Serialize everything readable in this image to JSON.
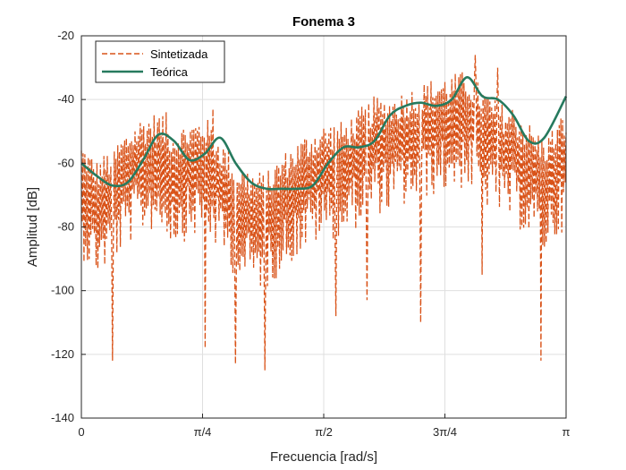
{
  "chart_data": {
    "type": "line",
    "title": "Fonema 3",
    "xlabel": "Frecuencia [rad/s]",
    "ylabel": "Amplitud [dB]",
    "xlim": [
      0,
      3.14159
    ],
    "ylim": [
      -140,
      -20
    ],
    "grid": true,
    "legend_position": "top-left",
    "xticks": [
      {
        "value": 0,
        "label": "0"
      },
      {
        "value": 0.7854,
        "label": "π/4"
      },
      {
        "value": 1.5708,
        "label": "π/2"
      },
      {
        "value": 2.3562,
        "label": "3π/4"
      },
      {
        "value": 3.14159,
        "label": "π"
      }
    ],
    "yticks": [
      -140,
      -120,
      -100,
      -80,
      -60,
      -40,
      -20
    ],
    "x": [
      0.0,
      0.1,
      0.2,
      0.3,
      0.4,
      0.5,
      0.6,
      0.7,
      0.8,
      0.9,
      1.0,
      1.1,
      1.2,
      1.3,
      1.4,
      1.5,
      1.6,
      1.7,
      1.8,
      1.9,
      2.0,
      2.1,
      2.2,
      2.3,
      2.4,
      2.5,
      2.6,
      2.7,
      2.8,
      2.9,
      3.0,
      3.1416
    ],
    "series": [
      {
        "name": "Sintetizada",
        "color": "#D95319",
        "style": "dashed",
        "values": [
          -66,
          -72,
          -68,
          -62,
          -58,
          -57,
          -62,
          -60,
          -58,
          -65,
          -72,
          -75,
          -76,
          -70,
          -66,
          -62,
          -60,
          -60,
          -56,
          -52,
          -52,
          -50,
          -48,
          -46,
          -45,
          -44,
          -49,
          -54,
          -55,
          -60,
          -65,
          -56
        ],
        "spikes_low": [
          {
            "x": 0.2,
            "y": -122
          },
          {
            "x": 0.8,
            "y": -118
          },
          {
            "x": 1.0,
            "y": -123
          },
          {
            "x": 1.19,
            "y": -125
          },
          {
            "x": 1.65,
            "y": -108
          },
          {
            "x": 1.85,
            "y": -103
          },
          {
            "x": 2.2,
            "y": -110
          },
          {
            "x": 2.6,
            "y": -95
          },
          {
            "x": 2.98,
            "y": -122
          }
        ],
        "spikes_high": [
          {
            "x": 0.55,
            "y": -44
          },
          {
            "x": 0.85,
            "y": -43
          },
          {
            "x": 2.55,
            "y": -26
          },
          {
            "x": 2.7,
            "y": -30
          }
        ]
      },
      {
        "name": "Teórica",
        "color": "#267A5E",
        "style": "solid",
        "values": [
          -60,
          -64,
          -67,
          -66,
          -59,
          -51,
          -53,
          -59,
          -57,
          -52,
          -60,
          -66,
          -68,
          -68,
          -68,
          -67,
          -60,
          -55,
          -55,
          -53,
          -45,
          -42,
          -41,
          -42,
          -40,
          -33,
          -39,
          -40,
          -45,
          -53,
          -52,
          -39
        ]
      }
    ]
  }
}
